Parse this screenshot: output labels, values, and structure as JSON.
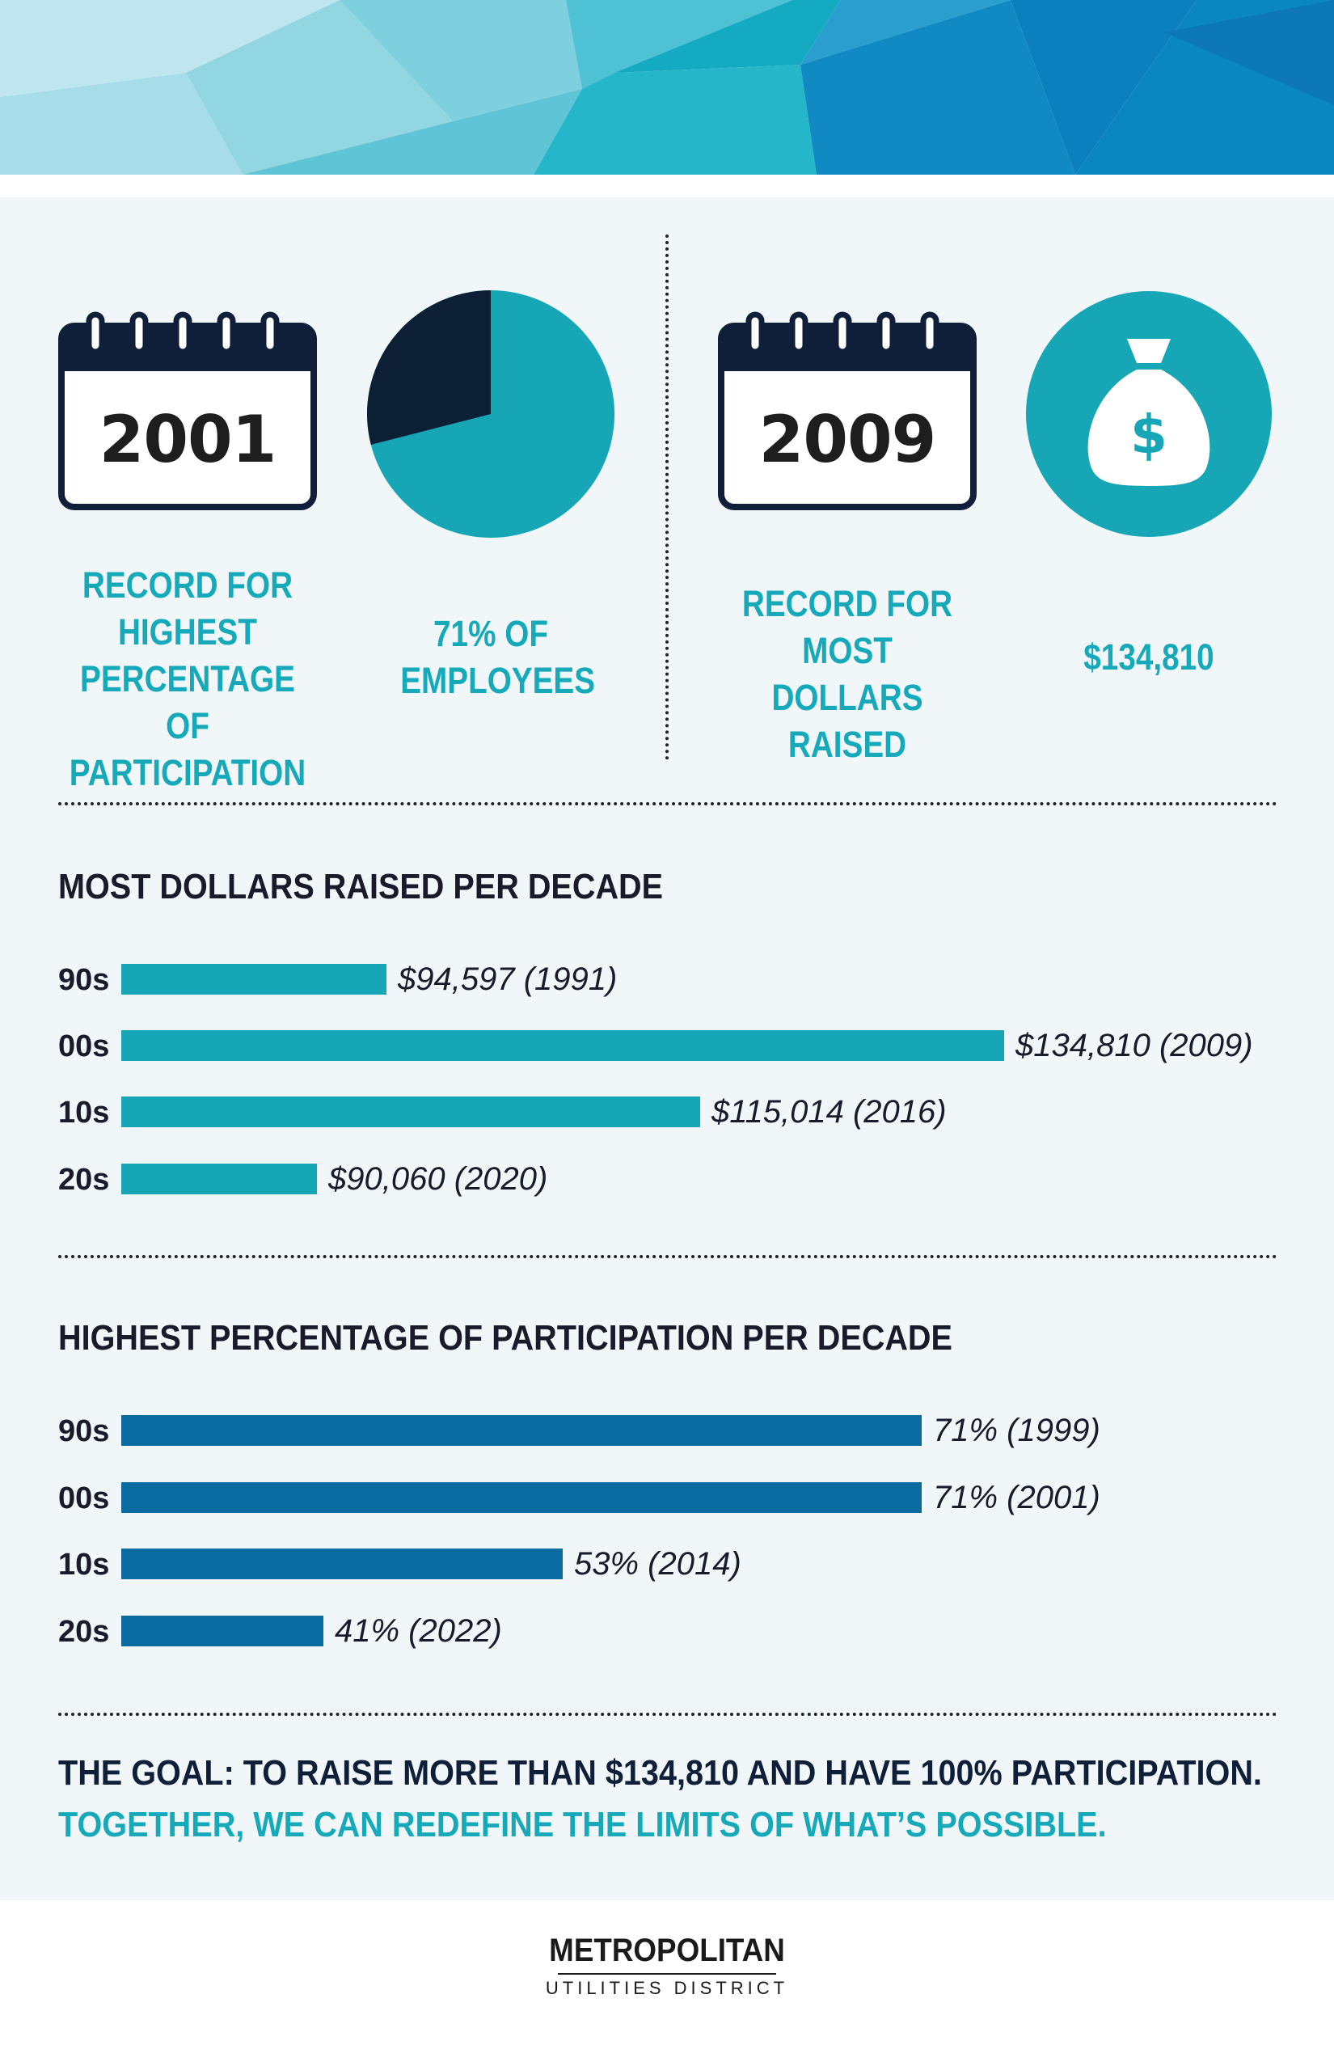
{
  "colors": {
    "teal": "#17a6b5",
    "blue": "#0a6ba0",
    "navy": "#0f1f3a",
    "pie_dark": "#0c1f35",
    "panel_bg": "#f1f7f8"
  },
  "records": {
    "participation": {
      "year": "2001",
      "label": "RECORD FOR HIGHEST PERCENTAGE OF PARTICIPATION",
      "value_text": "71% OF EMPLOYEES",
      "pie_percent": 71
    },
    "dollars": {
      "year": "2009",
      "label": "RECORD FOR MOST DOLLARS RAISED",
      "value_text": "$134,810",
      "icon": "money-bag-icon"
    }
  },
  "chart_data": [
    {
      "type": "bar",
      "orientation": "horizontal",
      "title": "MOST DOLLARS RAISED PER DECADE",
      "categories": [
        "90s",
        "00s",
        "10s",
        "20s"
      ],
      "values": [
        94597,
        134810,
        115014,
        90060
      ],
      "years": [
        1991,
        2009,
        2016,
        2020
      ],
      "value_labels": [
        "$94,597 (1991)",
        "$134,810 (2009)",
        "$115,014 (2016)",
        "$90,060 (2020)"
      ],
      "xlim": [
        60000,
        134810
      ],
      "color": "#17a6b5"
    },
    {
      "type": "bar",
      "orientation": "horizontal",
      "title": "HIGHEST PERCENTAGE OF PARTICIPATION PER DECADE",
      "categories": [
        "90s",
        "00s",
        "10s",
        "20s"
      ],
      "values": [
        71,
        71,
        53,
        41
      ],
      "years": [
        1999,
        2001,
        2014,
        2022
      ],
      "value_labels": [
        "71% (1999)",
        "71% (2001)",
        "53% (2014)",
        "41% (2022)"
      ],
      "xlim": [
        28,
        71
      ],
      "color": "#0a6ba0"
    }
  ],
  "goal": {
    "line1": "THE GOAL: TO RAISE MORE THAN $134,810 AND HAVE 100% PARTICIPATION.",
    "line2": "TOGETHER, WE CAN REDEFINE THE LIMITS OF WHAT’S POSSIBLE."
  },
  "footer": {
    "logo_main": "METROPOLITAN",
    "logo_sub": "UTILITIES DISTRICT"
  }
}
